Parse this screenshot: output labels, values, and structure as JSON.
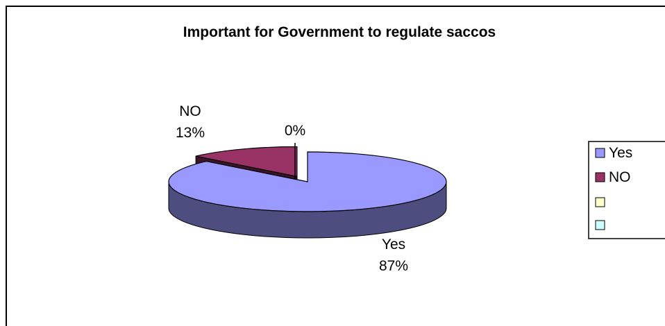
{
  "chart_data": {
    "type": "pie",
    "title": "Important for Government to regulate saccos",
    "categories": [
      "Yes",
      "NO",
      "",
      ""
    ],
    "values": [
      87,
      13,
      0,
      0
    ],
    "data_labels": [
      {
        "name": "Yes",
        "pct": "87%"
      },
      {
        "name": "NO",
        "pct": "13%"
      },
      {
        "name": "",
        "pct": "0%"
      }
    ],
    "colors": {
      "Yes": "#9999FF",
      "NO": "#993366",
      "series3": "#FFFFCC",
      "series4": "#CCFFFF"
    },
    "style": "3d-exploded",
    "legend": {
      "placement": "right",
      "items": [
        {
          "label": "Yes",
          "color": "#9999FF"
        },
        {
          "label": "NO",
          "color": "#993366"
        },
        {
          "label": "",
          "color": "#FFFFCC"
        },
        {
          "label": "",
          "color": "#CCFFFF"
        }
      ]
    }
  }
}
